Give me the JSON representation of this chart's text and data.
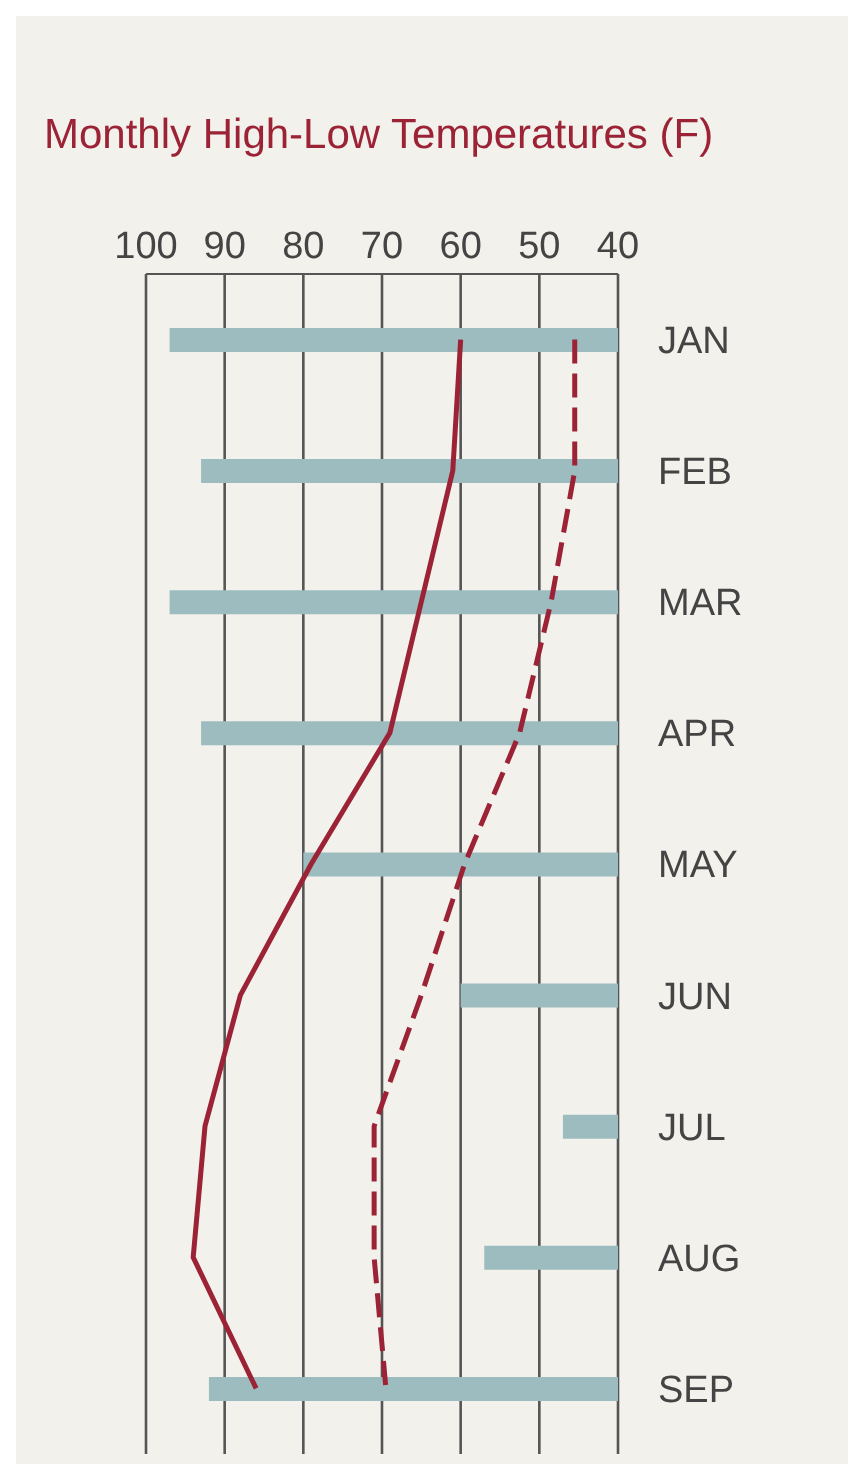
{
  "chart_data": {
    "type": "bar",
    "orientation": "horizontal",
    "title": "Monthly High-Low Temperatures (F)",
    "categories": [
      "JAN",
      "FEB",
      "MAR",
      "APR",
      "MAY",
      "JUN",
      "JUL",
      "AUG",
      "SEP"
    ],
    "series": [
      {
        "color": "#9dbcbf",
        "values": [
          97,
          93,
          97,
          93,
          80,
          60,
          47,
          57,
          92
        ]
      },
      {
        "type": "line",
        "color": "#9b2335",
        "line_style": "solid",
        "values": [
          60,
          61,
          65,
          69,
          79,
          88,
          92.5,
          94,
          86
        ]
      },
      {
        "type": "line",
        "color": "#9b2335",
        "line_style": "dashed",
        "values": [
          45.5,
          45.5,
          48.5,
          52.5,
          59.5,
          65,
          71,
          71,
          69.5
        ]
      }
    ],
    "xlim": [
      100,
      40
    ],
    "xticks": [
      100,
      90,
      80,
      70,
      60,
      50,
      40
    ],
    "grid": "x",
    "marker": "none"
  }
}
